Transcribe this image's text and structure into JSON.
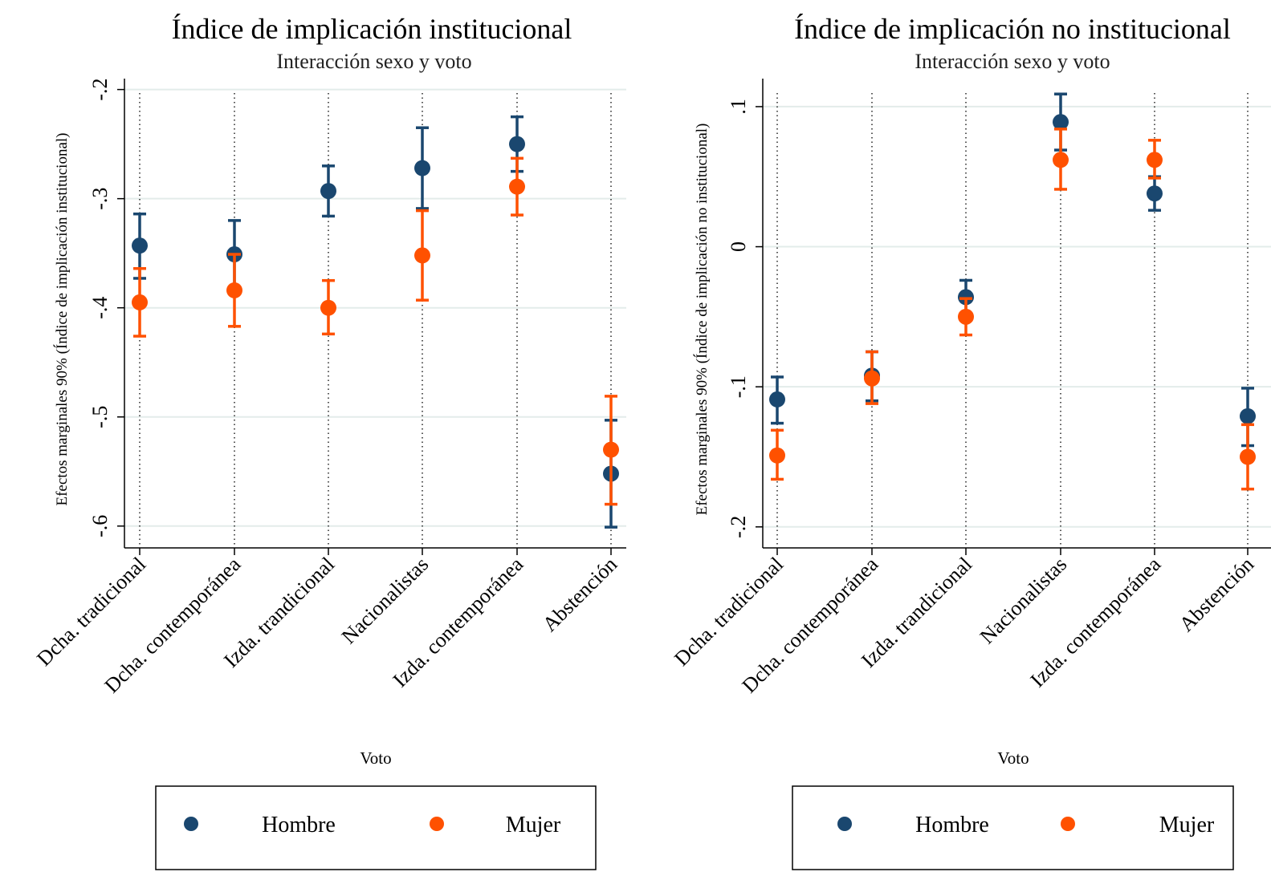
{
  "colors": {
    "hombre": "#1a476f",
    "mujer": "#ff5100",
    "grid": "#e3ecea",
    "axis": "#000000"
  },
  "chart_data": [
    {
      "type": "scatter",
      "title": "Índice de implicación institucional",
      "subtitle": "Interacción sexo y voto",
      "xlabel": "Voto",
      "ylabel": "Efectos marginales 90% (Índice de implicación institucional)",
      "categories": [
        "Dcha. tradicional",
        "Dcha. contemporánea",
        "Izda. trandicional",
        "Nacionalistas",
        "Izda. contemporánea",
        "Abstención"
      ],
      "ylim": [
        -0.62,
        -0.19
      ],
      "yticks": [
        -0.6,
        -0.5,
        -0.4,
        -0.3,
        -0.2
      ],
      "ytick_labels": [
        "-.6",
        "-.5",
        "-.4",
        "-.3",
        "-.2"
      ],
      "grid": true,
      "legend": "bottom",
      "series": [
        {
          "name": "Hombre",
          "values": [
            -0.343,
            -0.351,
            -0.293,
            -0.272,
            -0.25,
            -0.552
          ],
          "lower": [
            -0.373,
            -0.382,
            -0.316,
            -0.309,
            -0.275,
            -0.601
          ],
          "upper": [
            -0.314,
            -0.32,
            -0.27,
            -0.235,
            -0.225,
            -0.503
          ]
        },
        {
          "name": "Mujer",
          "values": [
            -0.395,
            -0.384,
            -0.4,
            -0.352,
            -0.289,
            -0.53
          ],
          "lower": [
            -0.426,
            -0.417,
            -0.424,
            -0.393,
            -0.315,
            -0.58
          ],
          "upper": [
            -0.364,
            -0.351,
            -0.375,
            -0.311,
            -0.263,
            -0.481
          ]
        }
      ]
    },
    {
      "type": "scatter",
      "title": "Índice de implicación no institucional",
      "subtitle": "Interacción sexo y voto",
      "xlabel": "Voto",
      "ylabel": "Efectos marginales 90% (Índice de implicación no institucional)",
      "categories": [
        "Dcha. tradicional",
        "Dcha. contemporánea",
        "Izda. trandicional",
        "Nacionalistas",
        "Izda. contemporánea",
        "Abstención"
      ],
      "ylim": [
        -0.215,
        0.12
      ],
      "yticks": [
        -0.2,
        -0.1,
        0,
        0.1
      ],
      "ytick_labels": [
        "-.2",
        "-.1",
        "0",
        ".1"
      ],
      "grid": true,
      "legend": "bottom",
      "series": [
        {
          "name": "Hombre",
          "values": [
            -0.109,
            -0.092,
            -0.036,
            0.089,
            0.038,
            -0.121
          ],
          "lower": [
            -0.126,
            -0.11,
            -0.049,
            0.069,
            0.026,
            -0.142
          ],
          "upper": [
            -0.093,
            -0.075,
            -0.024,
            0.109,
            0.05,
            -0.101
          ]
        },
        {
          "name": "Mujer",
          "values": [
            -0.149,
            -0.094,
            -0.05,
            0.062,
            0.062,
            -0.15
          ],
          "lower": [
            -0.166,
            -0.112,
            -0.063,
            0.041,
            0.049,
            -0.173
          ],
          "upper": [
            -0.131,
            -0.075,
            -0.037,
            0.084,
            0.076,
            -0.127
          ]
        }
      ]
    }
  ]
}
